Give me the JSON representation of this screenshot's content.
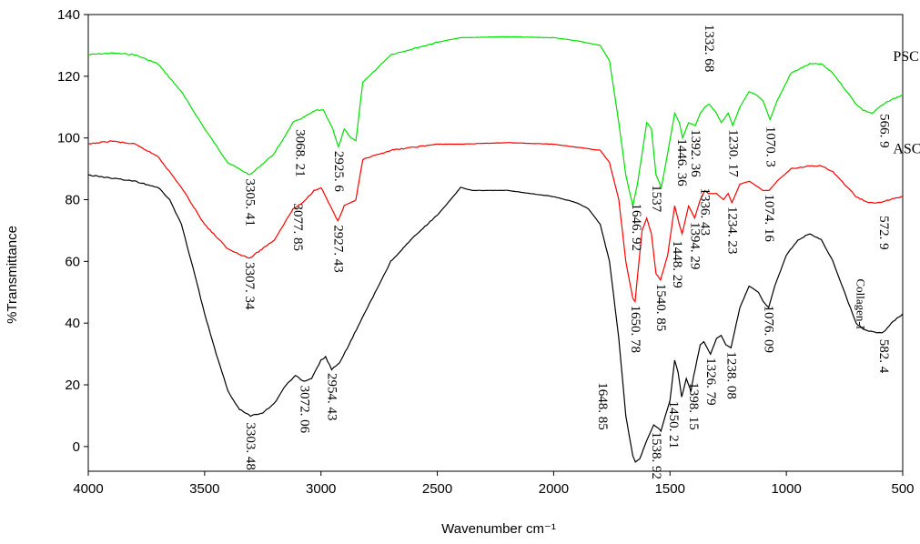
{
  "chart_data": {
    "type": "line",
    "title": "",
    "xlabel": "Wavenumber cm⁻¹",
    "ylabel": "%Transmittance",
    "xlim": [
      4000,
      500
    ],
    "ylim": [
      -8,
      140
    ],
    "x_reversed": true,
    "x_ticks": [
      4000,
      3500,
      3000,
      2500,
      2000,
      1500,
      1000,
      500
    ],
    "x_tick_labels": [
      "4000",
      "3500",
      "3000",
      "2500",
      "2000",
      "1500",
      "1000",
      "500"
    ],
    "y_ticks": [
      0,
      20,
      40,
      60,
      80,
      100,
      120,
      140
    ],
    "y_tick_labels": [
      "0",
      "20",
      "40",
      "60",
      "80",
      "100",
      "120",
      "140"
    ],
    "grid": false,
    "legend": "none",
    "series": [
      {
        "name": "PSC",
        "color": "#00e000",
        "label_at": [
          620,
          125
        ],
        "points": [
          [
            4000,
            127
          ],
          [
            3900,
            127.5
          ],
          [
            3800,
            127
          ],
          [
            3700,
            124
          ],
          [
            3600,
            115
          ],
          [
            3500,
            103
          ],
          [
            3400,
            92
          ],
          [
            3305,
            88
          ],
          [
            3200,
            95
          ],
          [
            3120,
            105
          ],
          [
            3068,
            107
          ],
          [
            3020,
            109
          ],
          [
            2990,
            109
          ],
          [
            2950,
            103
          ],
          [
            2925,
            97
          ],
          [
            2900,
            103
          ],
          [
            2870,
            100
          ],
          [
            2850,
            99
          ],
          [
            2820,
            118
          ],
          [
            2700,
            127
          ],
          [
            2600,
            129
          ],
          [
            2500,
            131
          ],
          [
            2400,
            132.5
          ],
          [
            2200,
            132.8
          ],
          [
            2000,
            132.5
          ],
          [
            1900,
            131.5
          ],
          [
            1800,
            130
          ],
          [
            1760,
            125
          ],
          [
            1720,
            105
          ],
          [
            1690,
            88
          ],
          [
            1660,
            78
          ],
          [
            1640,
            85
          ],
          [
            1600,
            105
          ],
          [
            1580,
            103
          ],
          [
            1560,
            88
          ],
          [
            1537,
            84
          ],
          [
            1510,
            95
          ],
          [
            1480,
            108
          ],
          [
            1460,
            105
          ],
          [
            1446,
            100
          ],
          [
            1420,
            105
          ],
          [
            1392,
            104
          ],
          [
            1370,
            108
          ],
          [
            1350,
            110
          ],
          [
            1332,
            111
          ],
          [
            1300,
            108
          ],
          [
            1280,
            105
          ],
          [
            1250,
            108
          ],
          [
            1230,
            104
          ],
          [
            1200,
            110
          ],
          [
            1160,
            115
          ],
          [
            1130,
            114
          ],
          [
            1100,
            112
          ],
          [
            1070,
            106
          ],
          [
            1040,
            112
          ],
          [
            980,
            121
          ],
          [
            900,
            124
          ],
          [
            850,
            124
          ],
          [
            800,
            121
          ],
          [
            750,
            116
          ],
          [
            700,
            111
          ],
          [
            670,
            109
          ],
          [
            630,
            108
          ],
          [
            600,
            110
          ],
          [
            560,
            112
          ],
          [
            500,
            114
          ]
        ]
      },
      {
        "name": "ASC",
        "color": "#ff0000",
        "label_at": [
          620,
          95
        ],
        "points": [
          [
            4000,
            98
          ],
          [
            3900,
            99
          ],
          [
            3800,
            98
          ],
          [
            3700,
            94
          ],
          [
            3600,
            84
          ],
          [
            3500,
            72
          ],
          [
            3400,
            64
          ],
          [
            3307,
            61
          ],
          [
            3200,
            67
          ],
          [
            3120,
            77
          ],
          [
            3078,
            79
          ],
          [
            3030,
            83
          ],
          [
            3000,
            84
          ],
          [
            2960,
            78
          ],
          [
            2927,
            73
          ],
          [
            2900,
            78
          ],
          [
            2870,
            79
          ],
          [
            2850,
            80
          ],
          [
            2820,
            93
          ],
          [
            2700,
            96
          ],
          [
            2600,
            97
          ],
          [
            2500,
            98
          ],
          [
            2400,
            98
          ],
          [
            2200,
            98.5
          ],
          [
            2000,
            98
          ],
          [
            1900,
            97
          ],
          [
            1800,
            96
          ],
          [
            1760,
            92
          ],
          [
            1720,
            80
          ],
          [
            1690,
            60
          ],
          [
            1660,
            48
          ],
          [
            1650,
            47
          ],
          [
            1640,
            55
          ],
          [
            1620,
            70
          ],
          [
            1600,
            74
          ],
          [
            1580,
            69
          ],
          [
            1560,
            56
          ],
          [
            1541,
            54
          ],
          [
            1510,
            62
          ],
          [
            1480,
            78
          ],
          [
            1460,
            72
          ],
          [
            1448,
            69
          ],
          [
            1420,
            78
          ],
          [
            1394,
            74
          ],
          [
            1370,
            80
          ],
          [
            1350,
            83
          ],
          [
            1336,
            82
          ],
          [
            1300,
            82
          ],
          [
            1270,
            80
          ],
          [
            1250,
            82
          ],
          [
            1234,
            79
          ],
          [
            1200,
            85
          ],
          [
            1160,
            86
          ],
          [
            1120,
            84
          ],
          [
            1100,
            83
          ],
          [
            1074,
            83
          ],
          [
            1040,
            86
          ],
          [
            980,
            90
          ],
          [
            900,
            91
          ],
          [
            850,
            91
          ],
          [
            800,
            89
          ],
          [
            750,
            85
          ],
          [
            700,
            81
          ],
          [
            650,
            79
          ],
          [
            600,
            79
          ],
          [
            560,
            80
          ],
          [
            500,
            81
          ]
        ]
      },
      {
        "name": "Collagen-I",
        "color": "#000000",
        "label_at": [
          620,
          52
        ],
        "points": [
          [
            4000,
            88
          ],
          [
            3900,
            87
          ],
          [
            3800,
            86
          ],
          [
            3700,
            84
          ],
          [
            3650,
            80
          ],
          [
            3600,
            72
          ],
          [
            3550,
            58
          ],
          [
            3500,
            43
          ],
          [
            3450,
            30
          ],
          [
            3400,
            18
          ],
          [
            3350,
            12
          ],
          [
            3303,
            10
          ],
          [
            3250,
            11
          ],
          [
            3200,
            14
          ],
          [
            3150,
            20
          ],
          [
            3110,
            23
          ],
          [
            3072,
            21
          ],
          [
            3040,
            22
          ],
          [
            3000,
            28
          ],
          [
            2980,
            29
          ],
          [
            2954,
            25
          ],
          [
            2920,
            27
          ],
          [
            2880,
            33
          ],
          [
            2800,
            45
          ],
          [
            2700,
            60
          ],
          [
            2600,
            68
          ],
          [
            2500,
            75
          ],
          [
            2420,
            82
          ],
          [
            2400,
            84
          ],
          [
            2350,
            83
          ],
          [
            2300,
            83
          ],
          [
            2200,
            83
          ],
          [
            2100,
            82
          ],
          [
            2000,
            81
          ],
          [
            1900,
            79
          ],
          [
            1850,
            77
          ],
          [
            1800,
            72
          ],
          [
            1760,
            60
          ],
          [
            1720,
            35
          ],
          [
            1690,
            10
          ],
          [
            1660,
            -3
          ],
          [
            1649,
            -5
          ],
          [
            1630,
            -4
          ],
          [
            1600,
            2
          ],
          [
            1570,
            7
          ],
          [
            1550,
            6
          ],
          [
            1539,
            5
          ],
          [
            1520,
            10
          ],
          [
            1500,
            15
          ],
          [
            1480,
            28
          ],
          [
            1465,
            24
          ],
          [
            1450,
            16
          ],
          [
            1430,
            22
          ],
          [
            1410,
            18
          ],
          [
            1398,
            23
          ],
          [
            1370,
            33
          ],
          [
            1355,
            34
          ],
          [
            1326,
            30
          ],
          [
            1300,
            35
          ],
          [
            1280,
            36
          ],
          [
            1260,
            33
          ],
          [
            1238,
            32
          ],
          [
            1200,
            45
          ],
          [
            1160,
            52
          ],
          [
            1120,
            50
          ],
          [
            1100,
            47
          ],
          [
            1076,
            45
          ],
          [
            1050,
            52
          ],
          [
            1000,
            62
          ],
          [
            950,
            67
          ],
          [
            900,
            69
          ],
          [
            850,
            67
          ],
          [
            800,
            60
          ],
          [
            750,
            50
          ],
          [
            700,
            40
          ],
          [
            670,
            38
          ],
          [
            620,
            37
          ],
          [
            582,
            37
          ],
          [
            550,
            40
          ],
          [
            500,
            43
          ]
        ]
      }
    ],
    "annotations": [
      {
        "text": "3305. 41",
        "x": 3305,
        "y": 88,
        "rotate": 90
      },
      {
        "text": "3068. 21",
        "x": 3090,
        "y": 104,
        "rotate": 90
      },
      {
        "text": "2925. 6",
        "x": 2925,
        "y": 97,
        "rotate": 90
      },
      {
        "text": "1332. 68",
        "x": 1332,
        "y": 138,
        "rotate": 90
      },
      {
        "text": "1230. 17",
        "x": 1230,
        "y": 104,
        "rotate": 90
      },
      {
        "text": "1070. 3",
        "x": 1070,
        "y": 105,
        "rotate": 90
      },
      {
        "text": "566. 9",
        "x": 580,
        "y": 109,
        "rotate": 90
      },
      {
        "text": "3307. 34",
        "x": 3307,
        "y": 61,
        "rotate": 90
      },
      {
        "text": "3077. 85",
        "x": 3100,
        "y": 80,
        "rotate": 90
      },
      {
        "text": "2927. 43",
        "x": 2927,
        "y": 73,
        "rotate": 90
      },
      {
        "text": "1646. 92",
        "x": 1646,
        "y": 80,
        "rotate": 90
      },
      {
        "text": "1537",
        "x": 1560,
        "y": 86,
        "rotate": 90
      },
      {
        "text": "1446. 36",
        "x": 1450,
        "y": 101,
        "rotate": 90
      },
      {
        "text": "1392. 36",
        "x": 1392,
        "y": 104,
        "rotate": 90
      },
      {
        "text": "1336. 43",
        "x": 1350,
        "y": 85,
        "rotate": 90
      },
      {
        "text": "1234. 23",
        "x": 1234,
        "y": 79,
        "rotate": 90
      },
      {
        "text": "1074. 16",
        "x": 1074,
        "y": 83,
        "rotate": 90
      },
      {
        "text": "572. 9",
        "x": 583,
        "y": 76,
        "rotate": 90
      },
      {
        "text": "1650. 78",
        "x": 1650,
        "y": 47,
        "rotate": 90
      },
      {
        "text": "1540. 85",
        "x": 1541,
        "y": 54,
        "rotate": 90
      },
      {
        "text": "1448. 29",
        "x": 1470,
        "y": 68,
        "rotate": 90
      },
      {
        "text": "1394. 29",
        "x": 1394,
        "y": 74,
        "rotate": 90
      },
      {
        "text": "3303. 48",
        "x": 3303,
        "y": 9,
        "rotate": 90
      },
      {
        "text": "3072. 06",
        "x": 3072,
        "y": 21,
        "rotate": 90
      },
      {
        "text": "2954. 43",
        "x": 2954,
        "y": 25,
        "rotate": 90
      },
      {
        "text": "1648. 85",
        "x": 1790,
        "y": 22,
        "rotate": 90
      },
      {
        "text": "1538. 92",
        "x": 1560,
        "y": 6,
        "rotate": 90
      },
      {
        "text": "1450. 21",
        "x": 1485,
        "y": 16,
        "rotate": 90
      },
      {
        "text": "1398. 15",
        "x": 1400,
        "y": 22,
        "rotate": 90
      },
      {
        "text": "1326. 79",
        "x": 1326,
        "y": 30,
        "rotate": 90
      },
      {
        "text": "1238. 08",
        "x": 1238,
        "y": 32,
        "rotate": 90
      },
      {
        "text": "1076. 09",
        "x": 1076,
        "y": 47,
        "rotate": 90
      },
      {
        "text": "582. 4",
        "x": 582,
        "y": 36,
        "rotate": 90
      }
    ]
  }
}
